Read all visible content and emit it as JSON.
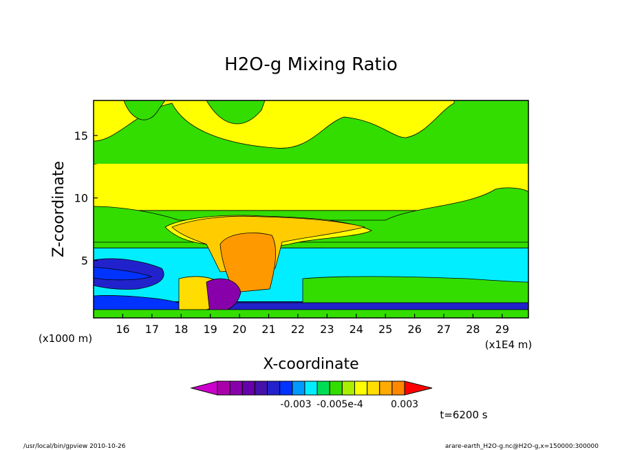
{
  "chart_data": {
    "type": "heatmap",
    "title": "H2O-g Mixing Ratio",
    "xlabel": "X-coordinate",
    "ylabel": "Z-coordinate",
    "xunit": "(x1E4 m)",
    "yunit": "(x1000 m)",
    "x_ticks": [
      "16",
      "17",
      "18",
      "19",
      "20",
      "21",
      "22",
      "23",
      "24",
      "25",
      "26",
      "27",
      "28",
      "29"
    ],
    "y_ticks": [
      "5",
      "10",
      "15"
    ],
    "xlim": [
      15.0,
      29.9
    ],
    "ylim": [
      0.4,
      17.8
    ],
    "colorbar": {
      "labels": [
        "-0.003",
        "-0.005e-4",
        "0.003"
      ],
      "colors": [
        "#cc00cc",
        "#aa00aa",
        "#8800aa",
        "#6600aa",
        "#4411aa",
        "#2222cc",
        "#0033ff",
        "#0099ff",
        "#00eeff",
        "#00dd55",
        "#33dd00",
        "#aaee00",
        "#ffff00",
        "#ffdd00",
        "#ffaa00",
        "#ff8800",
        "#ff0000"
      ]
    },
    "time_label": "t=6200 s",
    "footer_left": "/usr/local/bin/gpview  2010-10-26",
    "footer_right": "arare-earth_H2O-g.nc@H2O-g,x=150000:300000",
    "layers": [
      {
        "name": "band-bottom",
        "z_min": 0.4,
        "z_max": 1.2,
        "color": "#0033ff"
      },
      {
        "name": "band-low-navy",
        "z_min": 1.2,
        "z_max": 1.7,
        "color": "#2222cc"
      },
      {
        "name": "band-low-cyan",
        "z_min": 1.7,
        "z_max": 6.0,
        "color": "#00eeff"
      },
      {
        "name": "band-mid-green",
        "z_min": 6.0,
        "z_max": 9.0,
        "color": "#33dd00"
      },
      {
        "name": "band-upper-yellow",
        "z_min": 9.0,
        "z_max": 12.7,
        "color": "#ffff00"
      },
      {
        "name": "band-top-green",
        "z_min": 12.7,
        "z_max": 17.8,
        "color": "#33dd00"
      }
    ]
  }
}
